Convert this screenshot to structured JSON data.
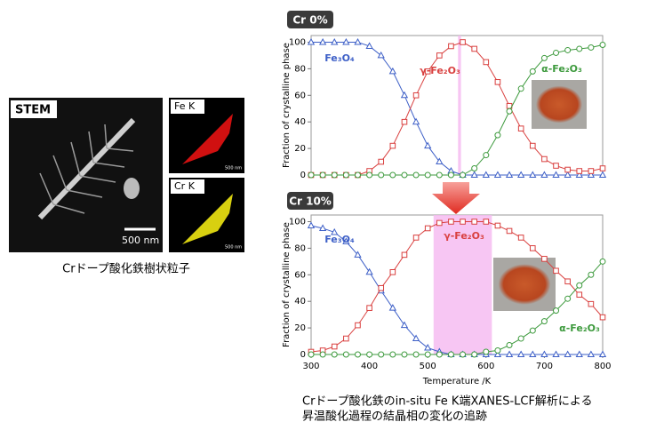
{
  "left_panel": {
    "stem_label": "STEM",
    "stem_scale": "500 nm",
    "fe_label": "Fe K",
    "fe_scale": "500 nm",
    "cr_label": "Cr K",
    "cr_scale": "500 nm",
    "caption": "Crドープ酸化鉄樹状粒子"
  },
  "bottom_caption": [
    "Crドープ酸化鉄のin-situ Fe K端XANES-LCF解析による",
    "昇温酸化過程の結晶相の変化の追跡"
  ],
  "chart_data": [
    {
      "type": "line",
      "title": "Cr 0%",
      "y_label": "Fraction of crystalline phase",
      "x": [
        300,
        320,
        340,
        360,
        380,
        400,
        420,
        440,
        460,
        480,
        500,
        520,
        540,
        560,
        580,
        600,
        620,
        640,
        660,
        680,
        700,
        720,
        740,
        760,
        780,
        800
      ],
      "xlim": [
        300,
        800
      ],
      "ylim": [
        0,
        105
      ],
      "yticks": [
        0,
        20,
        40,
        60,
        80,
        100
      ],
      "highlight": [
        552,
        557
      ],
      "series": [
        {
          "name": "Fe₃O₄",
          "color": "#3d5fc7",
          "marker": "triangle",
          "values": [
            100,
            100,
            100,
            100,
            100,
            97,
            90,
            78,
            60,
            40,
            22,
            10,
            3,
            0,
            0,
            0,
            0,
            0,
            0,
            0,
            0,
            0,
            0,
            0,
            0,
            0
          ]
        },
        {
          "name": "γ-Fe₂O₃",
          "color": "#d9403f",
          "marker": "square",
          "values": [
            0,
            0,
            0,
            0,
            0,
            3,
            10,
            22,
            40,
            60,
            78,
            90,
            97,
            100,
            95,
            85,
            70,
            52,
            35,
            22,
            12,
            7,
            4,
            3,
            3,
            5
          ]
        },
        {
          "name": "α-Fe₂O₃",
          "color": "#3d9a3d",
          "marker": "circle",
          "values": [
            0,
            0,
            0,
            0,
            0,
            0,
            0,
            0,
            0,
            0,
            0,
            0,
            0,
            0,
            5,
            15,
            30,
            48,
            65,
            78,
            88,
            92,
            94,
            95,
            96,
            98
          ]
        }
      ]
    },
    {
      "type": "line",
      "title": "Cr 10%",
      "y_label": "Fraction of crystalline phase",
      "x_label": "Temperature /K",
      "x": [
        300,
        320,
        340,
        360,
        380,
        400,
        420,
        440,
        460,
        480,
        500,
        520,
        540,
        560,
        580,
        600,
        620,
        640,
        660,
        680,
        700,
        720,
        740,
        760,
        780,
        800
      ],
      "xlim": [
        300,
        800
      ],
      "xticks": [
        300,
        400,
        500,
        600,
        700,
        800
      ],
      "ylim": [
        0,
        105
      ],
      "yticks": [
        0,
        20,
        40,
        60,
        80,
        100
      ],
      "highlight": [
        510,
        610
      ],
      "series": [
        {
          "name": "Fe₃O₄",
          "color": "#3d5fc7",
          "marker": "triangle",
          "values": [
            97,
            95,
            92,
            85,
            75,
            62,
            48,
            35,
            22,
            12,
            5,
            2,
            0,
            0,
            0,
            0,
            0,
            0,
            0,
            0,
            0,
            0,
            0,
            0,
            0,
            0
          ]
        },
        {
          "name": "γ-Fe₂O₃",
          "color": "#d9403f",
          "marker": "square",
          "values": [
            2,
            3,
            6,
            12,
            22,
            35,
            50,
            62,
            75,
            88,
            95,
            99,
            100,
            100,
            100,
            100,
            97,
            93,
            88,
            80,
            72,
            63,
            55,
            45,
            38,
            28
          ]
        },
        {
          "name": "α-Fe₂O₃",
          "color": "#3d9a3d",
          "marker": "circle",
          "values": [
            0,
            0,
            0,
            0,
            0,
            0,
            0,
            0,
            0,
            0,
            0,
            0,
            0,
            0,
            0,
            2,
            3,
            7,
            12,
            18,
            25,
            33,
            42,
            52,
            60,
            70
          ]
        }
      ]
    }
  ]
}
